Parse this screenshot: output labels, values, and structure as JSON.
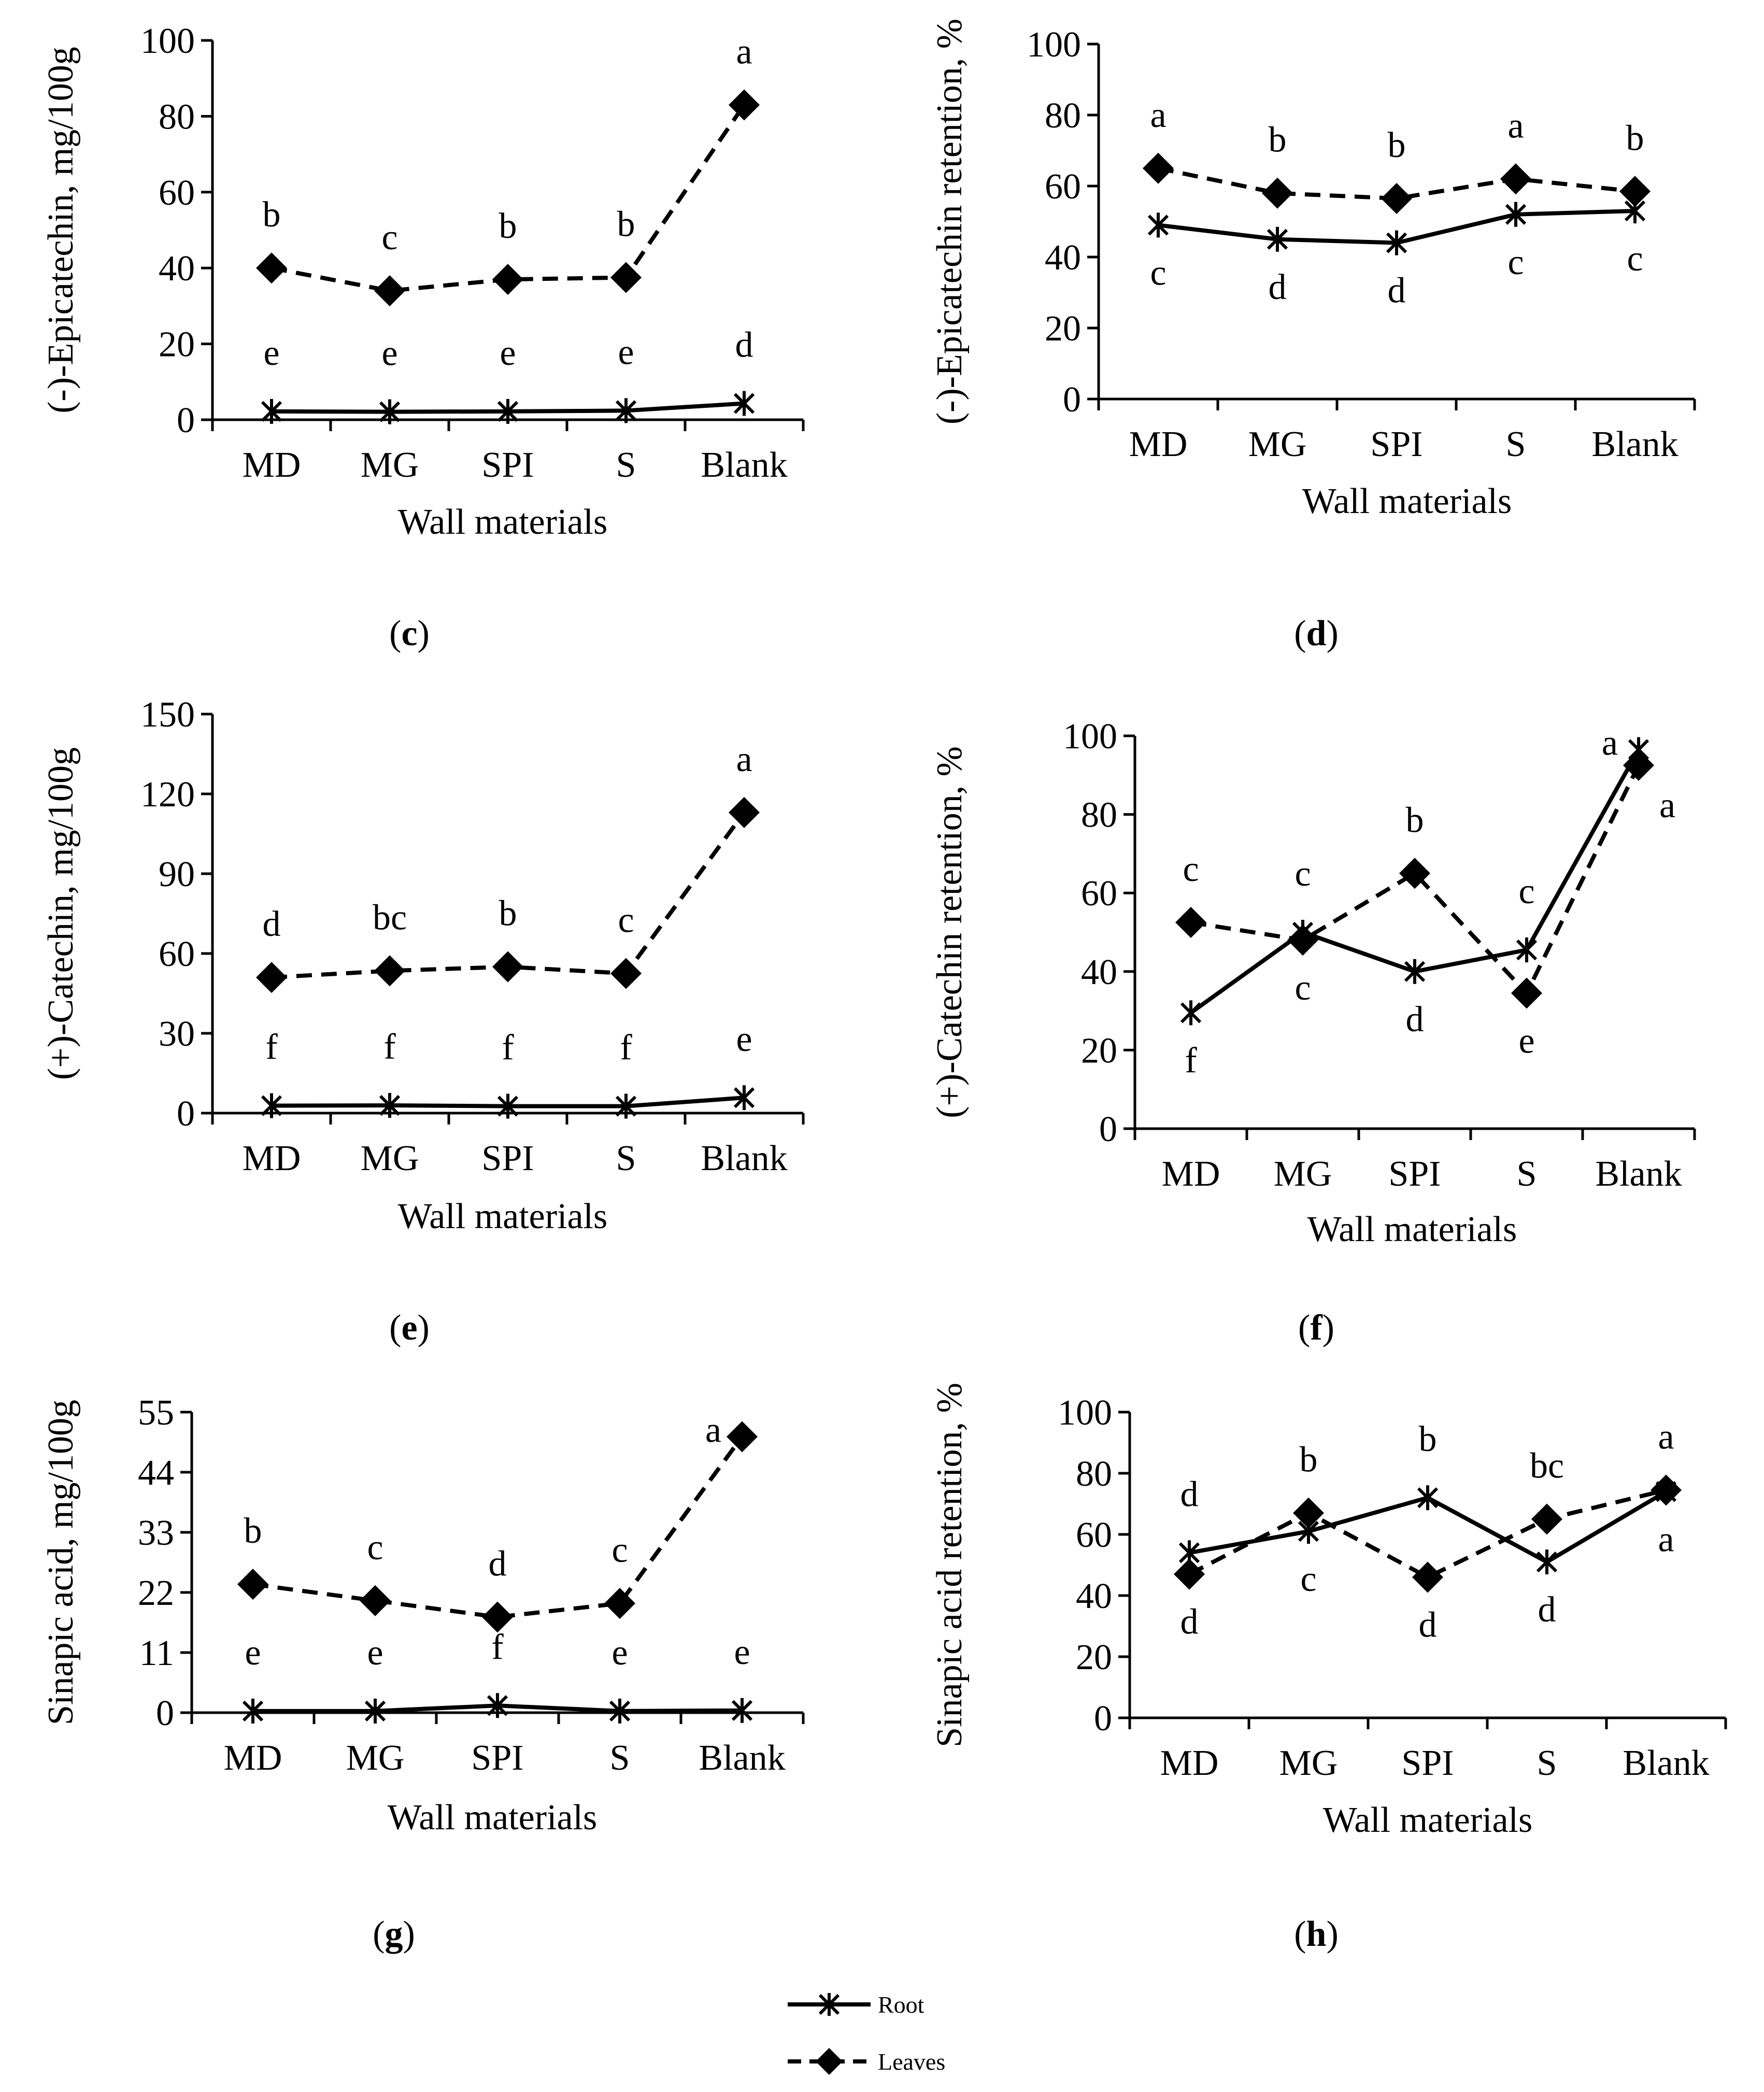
{
  "figure": {
    "legend": {
      "placement": "bottom-center",
      "entries": [
        {
          "label": "Root",
          "line_style": "solid",
          "marker": "asterisk"
        },
        {
          "label": "Leaves",
          "line_style": "dashed",
          "marker": "diamond"
        }
      ]
    }
  },
  "chart_data": [
    {
      "panel": "c",
      "type": "line",
      "ylabel": "(-)-Epicatechin, mg/100g",
      "xlabel": "Wall materials",
      "categories": [
        "MD",
        "MG",
        "SPI",
        "S",
        "Blank"
      ],
      "ylim": [
        0,
        100
      ],
      "yticks": [
        "0",
        "20",
        "40",
        "60",
        "80",
        "100"
      ],
      "grid": false,
      "series": [
        {
          "name": "Root",
          "values": [
            2.2,
            2.1,
            2.2,
            2.4,
            4.3
          ],
          "letters": [
            "e",
            "e",
            "e",
            "e",
            "d"
          ],
          "letter_pos": [
            "above",
            "above",
            "above",
            "above",
            "above"
          ]
        },
        {
          "name": "Leaves",
          "values": [
            40,
            34,
            37,
            37.5,
            83
          ],
          "letters": [
            "b",
            "c",
            "b",
            "b",
            "a"
          ],
          "letter_pos": [
            "above",
            "above",
            "above",
            "above",
            "above"
          ]
        }
      ]
    },
    {
      "panel": "d",
      "type": "line",
      "ylabel": "(-)-Epicatechin retention, %",
      "xlabel": "Wall materials",
      "categories": [
        "MD",
        "MG",
        "SPI",
        "S",
        "Blank"
      ],
      "ylim": [
        0,
        100
      ],
      "yticks": [
        "0",
        "20",
        "40",
        "60",
        "80",
        "100"
      ],
      "grid": false,
      "series": [
        {
          "name": "Root",
          "values": [
            49,
            45,
            44,
            52,
            53
          ],
          "letters": [
            "c",
            "d",
            "d",
            "c",
            "c"
          ],
          "letter_pos": [
            "below",
            "below",
            "below",
            "below",
            "below"
          ]
        },
        {
          "name": "Leaves",
          "values": [
            65,
            58,
            56.5,
            62,
            58.5
          ],
          "letters": [
            "a",
            "b",
            "b",
            "a",
            "b"
          ],
          "letter_pos": [
            "above",
            "above",
            "above",
            "above",
            "above"
          ]
        }
      ]
    },
    {
      "panel": "e",
      "type": "line",
      "ylabel": "(+)-Catechin, mg/100g",
      "xlabel": "Wall materials",
      "categories": [
        "MD",
        "MG",
        "SPI",
        "S",
        "Blank"
      ],
      "ylim": [
        0,
        150
      ],
      "yticks": [
        "0",
        "30",
        "60",
        "90",
        "120",
        "150"
      ],
      "grid": false,
      "series": [
        {
          "name": "Root",
          "values": [
            2.8,
            2.9,
            2.6,
            2.6,
            5.8
          ],
          "letters": [
            "f",
            "f",
            "f",
            "f",
            "e"
          ],
          "letter_pos": [
            "above",
            "above",
            "above",
            "above",
            "above"
          ]
        },
        {
          "name": "Leaves",
          "values": [
            51,
            53.5,
            55,
            52.5,
            113
          ],
          "letters": [
            "d",
            "bc",
            "b",
            "c",
            "a"
          ],
          "letter_pos": [
            "above",
            "above",
            "above",
            "above",
            "above"
          ]
        }
      ]
    },
    {
      "panel": "f",
      "type": "line",
      "ylabel": "(+)-Catechin retention, %",
      "xlabel": "Wall materials",
      "categories": [
        "MD",
        "MG",
        "SPI",
        "S",
        "Blank"
      ],
      "ylim": [
        0,
        100
      ],
      "yticks": [
        "0",
        "20",
        "40",
        "60",
        "80",
        "100"
      ],
      "grid": false,
      "series": [
        {
          "name": "Root",
          "values": [
            29.5,
            50,
            40,
            45.5,
            96.5
          ],
          "letters": [
            "f",
            "c",
            "d",
            "c",
            "a"
          ],
          "letter_pos": [
            "below",
            "above",
            "below",
            "above",
            "left"
          ]
        },
        {
          "name": "Leaves",
          "values": [
            52.5,
            48,
            65,
            34.5,
            92.5
          ],
          "letters": [
            "c",
            "c",
            "b",
            "e",
            "a"
          ],
          "letter_pos": [
            "above",
            "below",
            "above",
            "below",
            "right"
          ]
        }
      ]
    },
    {
      "panel": "g",
      "type": "line",
      "ylabel": "Sinapic acid, mg/100g",
      "xlabel": "Wall materials",
      "categories": [
        "MD",
        "MG",
        "SPI",
        "S",
        "Blank"
      ],
      "ylim": [
        0,
        55
      ],
      "yticks": [
        "0",
        "11",
        "22",
        "33",
        "44",
        "55"
      ],
      "grid": false,
      "series": [
        {
          "name": "Root",
          "values": [
            0.3,
            0.3,
            1.3,
            0.3,
            0.4
          ],
          "letters": [
            "e",
            "e",
            "f",
            "e",
            "e"
          ],
          "letter_pos": [
            "above",
            "above",
            "above",
            "above",
            "above"
          ]
        },
        {
          "name": "Leaves",
          "values": [
            23.5,
            20.5,
            17.5,
            20,
            50.5
          ],
          "letters": [
            "b",
            "c",
            "d",
            "c",
            "a"
          ],
          "letter_pos": [
            "above",
            "above",
            "above",
            "above",
            "left"
          ]
        }
      ]
    },
    {
      "panel": "h",
      "type": "line",
      "ylabel": "Sinapic acid retention, %",
      "xlabel": "Wall materials",
      "categories": [
        "MD",
        "MG",
        "SPI",
        "S",
        "Blank"
      ],
      "ylim": [
        0,
        100
      ],
      "yticks": [
        "0",
        "20",
        "40",
        "60",
        "80",
        "100"
      ],
      "grid": false,
      "series": [
        {
          "name": "Root",
          "values": [
            54,
            61,
            72,
            51,
            74
          ],
          "letters": [
            "d",
            "c",
            "b",
            "d",
            "a"
          ],
          "letter_pos": [
            "above",
            "below",
            "above",
            "below",
            "below"
          ]
        },
        {
          "name": "Leaves",
          "values": [
            47,
            67,
            46,
            65,
            74.5
          ],
          "letters": [
            "d",
            "b",
            "d",
            "bc",
            "a"
          ],
          "letter_pos": [
            "below",
            "above",
            "below",
            "above",
            "above"
          ]
        }
      ]
    }
  ]
}
